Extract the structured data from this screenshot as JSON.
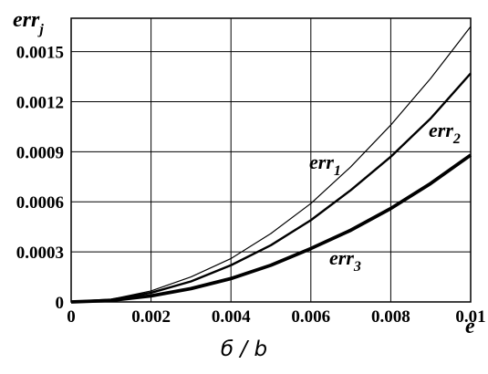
{
  "chart_data": {
    "type": "line",
    "title": "",
    "xlabel": "e",
    "ylabel": {
      "base": "err",
      "sub": "j"
    },
    "xlim": [
      0,
      0.01
    ],
    "ylim": [
      0,
      0.0017
    ],
    "grid": true,
    "x_ticks": [
      "0",
      "0.002",
      "0.004",
      "0.006",
      "0.008",
      "0.01"
    ],
    "y_ticks": [
      "0",
      "0.0003",
      "0.0006",
      "0.0009",
      "0.0012",
      "0.0015"
    ],
    "x_tick_values": [
      0,
      0.002,
      0.004,
      0.006,
      0.008,
      0.01
    ],
    "y_tick_values": [
      0,
      0.0003,
      0.0006,
      0.0009,
      0.0012,
      0.0015
    ],
    "series": [
      {
        "label_base": "err",
        "label_sub": "1",
        "line_weight": "thin",
        "x": [
          0,
          0.001,
          0.002,
          0.003,
          0.004,
          0.005,
          0.006,
          0.007,
          0.008,
          0.009,
          0.01
        ],
        "y": [
          0,
          1.6e-05,
          6.6e-05,
          0.00015,
          0.00026,
          0.00041,
          0.00059,
          0.00081,
          0.00106,
          0.00134,
          0.00165
        ]
      },
      {
        "label_base": "err",
        "label_sub": "2",
        "line_weight": "medium",
        "x": [
          0,
          0.001,
          0.002,
          0.003,
          0.004,
          0.005,
          0.006,
          0.007,
          0.008,
          0.009,
          0.01
        ],
        "y": [
          0,
          1.4e-05,
          5.5e-05,
          0.000123,
          0.00022,
          0.00034,
          0.00049,
          0.00067,
          0.00087,
          0.0011,
          0.00137
        ]
      },
      {
        "label_base": "err",
        "label_sub": "3",
        "line_weight": "thick",
        "x": [
          0,
          0.001,
          0.002,
          0.003,
          0.004,
          0.005,
          0.006,
          0.007,
          0.008,
          0.009,
          0.01
        ],
        "y": [
          0,
          9e-06,
          3.6e-05,
          8e-05,
          0.00014,
          0.00022,
          0.00032,
          0.00043,
          0.00056,
          0.00071,
          0.00088
        ]
      }
    ]
  },
  "caption": "б / b"
}
